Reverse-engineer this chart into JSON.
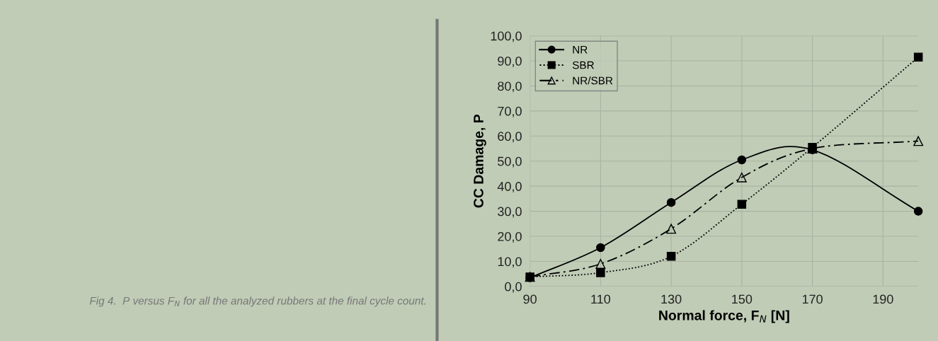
{
  "chart_data": {
    "type": "line",
    "xlabel": "Normal force, F$_{N}$ [N]",
    "ylabel": "CC Damage, P",
    "x": [
      90,
      110,
      130,
      150,
      170,
      200
    ],
    "series": [
      {
        "name": "NR",
        "color": "#000000",
        "marker": "circle",
        "line_style": "solid",
        "values": [
          3.5,
          15.5,
          33.5,
          50.5,
          54.5,
          30.0
        ]
      },
      {
        "name": "SBR",
        "color": "#000000",
        "marker": "square",
        "line_style": "dotted",
        "values": [
          3.8,
          5.5,
          12.0,
          32.8,
          55.5,
          91.5
        ]
      },
      {
        "name": "NR/SBR",
        "color": "#000000",
        "marker": "triangle",
        "line_style": "dashdot",
        "values": [
          3.8,
          9.0,
          23.0,
          43.5,
          55.0,
          58.0
        ]
      }
    ],
    "xlim": [
      90,
      200
    ],
    "xticks": [
      90,
      110,
      130,
      150,
      170,
      190
    ],
    "ylim": [
      0,
      100
    ],
    "yticks": [
      {
        "value": 0,
        "label": "0,0"
      },
      {
        "value": 10,
        "label": "10,0"
      },
      {
        "value": 20,
        "label": "20,0"
      },
      {
        "value": 30,
        "label": "30,0"
      },
      {
        "value": 40,
        "label": "40,0"
      },
      {
        "value": 50,
        "label": "50,0"
      },
      {
        "value": 60,
        "label": "60,0"
      },
      {
        "value": 70,
        "label": "70,0"
      },
      {
        "value": 80,
        "label": "80,0"
      },
      {
        "value": 90,
        "label": "90,0"
      },
      {
        "value": 100,
        "label": "100,0"
      }
    ],
    "grid": true,
    "legend": "top left",
    "annotations": [
      "Fig 4.  P versus F$_{N}$ for all the analyzed rubbers at the final cycle count."
    ]
  }
}
